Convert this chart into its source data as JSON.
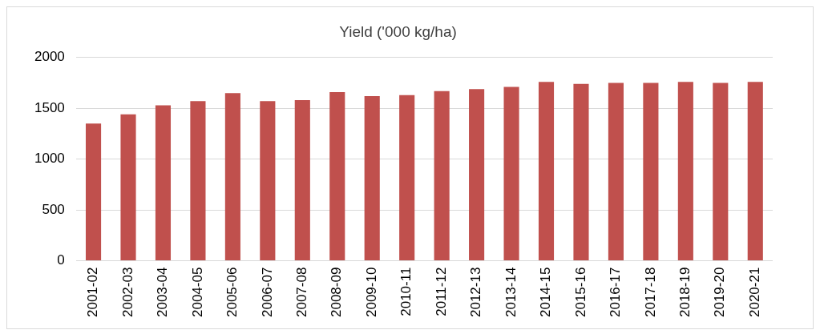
{
  "chart_data": {
    "type": "bar",
    "title": "Yield ('000 kg/ha)",
    "categories": [
      "2001-02",
      "2002-03",
      "2003-04",
      "2004-05",
      "2005-06",
      "2006-07",
      "2007-08",
      "2008-09",
      "2009-10",
      "2010-11",
      "2011-12",
      "2012-13",
      "2013-14",
      "2014-15",
      "2015-16",
      "2016-17",
      "2017-18",
      "2018-19",
      "2019-20",
      "2020-21"
    ],
    "values": [
      1350,
      1440,
      1530,
      1570,
      1650,
      1570,
      1580,
      1660,
      1620,
      1630,
      1670,
      1690,
      1710,
      1760,
      1740,
      1750,
      1750,
      1760,
      1750,
      1760
    ],
    "color": "#c0504d",
    "ylim": [
      0,
      2000
    ],
    "yticks": [
      0,
      500,
      1000,
      1500,
      2000
    ],
    "grid": "y"
  }
}
